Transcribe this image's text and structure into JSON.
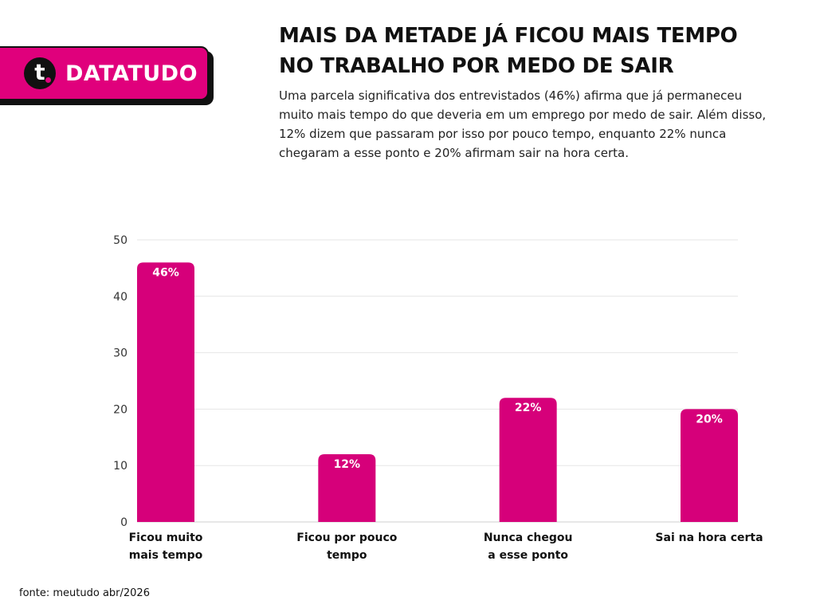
{
  "brand": {
    "mark": "t",
    "name": "DATATUDO",
    "color": "#e0007c"
  },
  "header": {
    "title_line1": "MAIS DA METADE JÁ FICOU MAIS TEMPO",
    "title_line2": "NO TRABALHO POR MEDO DE SAIR",
    "subtitle": "Uma parcela significativa dos entrevistados (46%) afirma que já permaneceu muito mais tempo do que deveria em um emprego por medo de sair. Além disso, 12% dizem que passaram por isso por pouco tempo, enquanto 22% nunca chegaram a esse ponto e 20% afirmam sair na hora certa."
  },
  "chart_data": {
    "type": "bar",
    "categories": [
      [
        "Ficou muito",
        "mais tempo"
      ],
      [
        "Ficou por pouco",
        "tempo"
      ],
      [
        "Nunca chegou",
        "a esse ponto"
      ],
      [
        "Sai na hora certa"
      ]
    ],
    "values": [
      46,
      12,
      22,
      20
    ],
    "data_labels": [
      "46%",
      "12%",
      "22%",
      "20%"
    ],
    "yticks": [
      0,
      10,
      20,
      30,
      40,
      50
    ],
    "ylim": [
      0,
      50
    ],
    "grid": true,
    "bar_color": "#d6007a",
    "label_color": "#ffffff"
  },
  "footer": {
    "source": "fonte: meutudo abr/2026"
  }
}
